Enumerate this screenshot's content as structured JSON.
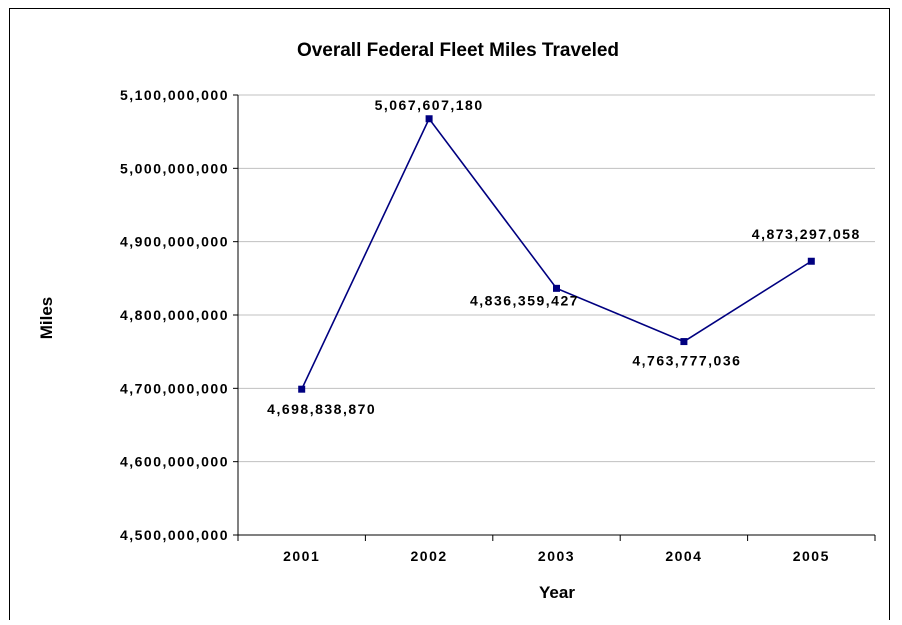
{
  "chart_data": {
    "type": "line",
    "title": "Overall Federal Fleet Miles Traveled",
    "xlabel": "Year",
    "ylabel": "Miles",
    "categories": [
      "2001",
      "2002",
      "2003",
      "2004",
      "2005"
    ],
    "series": [
      {
        "values": [
          4698838870,
          5067607180,
          4836359427,
          4763777036,
          4873297058
        ],
        "color": "#000080"
      }
    ],
    "data_labels": [
      "4,698,838,870",
      "5,067,607,180",
      "4,836,359,427",
      "4,763,777,036",
      "4,873,297,058"
    ],
    "ylim": [
      4500000000,
      5100000000
    ],
    "y_ticks": [
      4500000000,
      4600000000,
      4700000000,
      4800000000,
      4900000000,
      5000000000,
      5100000000
    ],
    "y_tick_labels": [
      "4,500,000,000",
      "4,600,000,000",
      "4,700,000,000",
      "4,800,000,000",
      "4,900,000,000",
      "5,000,000,000",
      "5,100,000,000"
    ],
    "grid": true,
    "legend": "none",
    "grid_color": "#c0c0c0"
  }
}
